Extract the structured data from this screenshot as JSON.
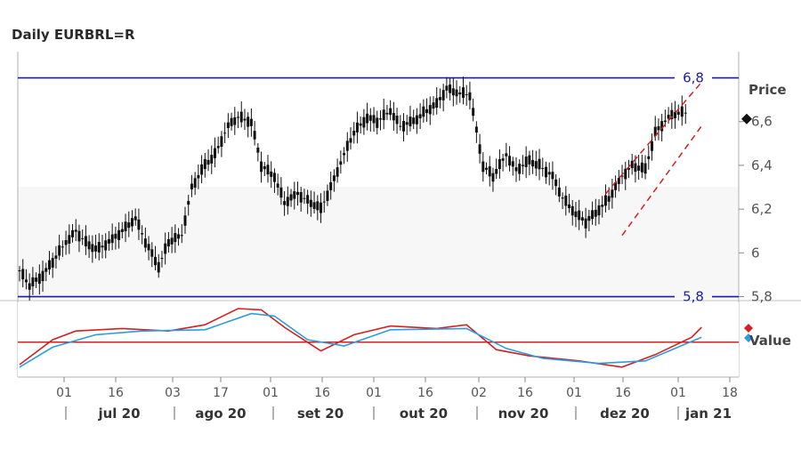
{
  "title": "Daily EURBRL=R",
  "chart_data": [
    {
      "type": "candlestick",
      "panel": "price",
      "yaxis_title": "Price",
      "ylim": [
        5.79,
        6.92
      ],
      "yticks": [
        5.8,
        6,
        6.2,
        6.4,
        6.6
      ],
      "ytick_labels": [
        "5,8",
        "6",
        "6,2",
        "6,4",
        "6,6"
      ],
      "last_value_marker": 6.6,
      "grid": false,
      "x_tick_labels": [
        "01",
        "16",
        "03",
        "17",
        "01",
        "16",
        "01",
        "16",
        "02",
        "16",
        "01",
        "16",
        "01",
        "18"
      ],
      "x_month_labels": [
        "jul 20",
        "ago 20",
        "set 20",
        "out 20",
        "nov 20",
        "dez 20",
        "jan 21"
      ],
      "horizontal_lines": [
        {
          "value": 6.8,
          "label": "6,8",
          "color": "#1c1caa"
        },
        {
          "value": 5.8,
          "label": "5,8",
          "color": "#1c1caa"
        }
      ],
      "trend_channel": {
        "color": "#d42020",
        "style": "dashed",
        "upper": [
          [
            "2020-12-09",
            6.27
          ],
          [
            "2021-01-07",
            6.78
          ]
        ],
        "lower": [
          [
            "2020-12-14",
            6.08
          ],
          [
            "2021-01-07",
            6.58
          ]
        ]
      },
      "series": [
        {
          "points": [
            [
              "2020-06-15",
              5.92
            ],
            [
              "2020-06-18",
              5.85
            ],
            [
              "2020-06-22",
              5.9
            ],
            [
              "2020-06-25",
              5.96
            ],
            [
              "2020-06-29",
              6.05
            ],
            [
              "2020-07-02",
              6.1
            ],
            [
              "2020-07-06",
              6.03
            ],
            [
              "2020-07-09",
              6.02
            ],
            [
              "2020-07-13",
              6.06
            ],
            [
              "2020-07-16",
              6.1
            ],
            [
              "2020-07-20",
              6.16
            ],
            [
              "2020-07-23",
              6.05
            ],
            [
              "2020-07-27",
              5.94
            ],
            [
              "2020-07-30",
              6.05
            ],
            [
              "2020-08-03",
              6.08
            ],
            [
              "2020-08-06",
              6.3
            ],
            [
              "2020-08-10",
              6.4
            ],
            [
              "2020-08-13",
              6.45
            ],
            [
              "2020-08-17",
              6.58
            ],
            [
              "2020-08-20",
              6.62
            ],
            [
              "2020-08-24",
              6.6
            ],
            [
              "2020-08-27",
              6.4
            ],
            [
              "2020-08-31",
              6.35
            ],
            [
              "2020-09-03",
              6.23
            ],
            [
              "2020-09-07",
              6.27
            ],
            [
              "2020-09-10",
              6.24
            ],
            [
              "2020-09-14",
              6.2
            ],
            [
              "2020-09-17",
              6.3
            ],
            [
              "2020-09-21",
              6.45
            ],
            [
              "2020-09-24",
              6.55
            ],
            [
              "2020-09-28",
              6.62
            ],
            [
              "2020-10-01",
              6.6
            ],
            [
              "2020-10-05",
              6.65
            ],
            [
              "2020-10-08",
              6.58
            ],
            [
              "2020-10-12",
              6.6
            ],
            [
              "2020-10-15",
              6.64
            ],
            [
              "2020-10-19",
              6.68
            ],
            [
              "2020-10-22",
              6.75
            ],
            [
              "2020-10-26",
              6.73
            ],
            [
              "2020-10-29",
              6.72
            ],
            [
              "2020-11-02",
              6.4
            ],
            [
              "2020-11-05",
              6.35
            ],
            [
              "2020-11-09",
              6.45
            ],
            [
              "2020-11-12",
              6.38
            ],
            [
              "2020-11-16",
              6.42
            ],
            [
              "2020-11-19",
              6.4
            ],
            [
              "2020-11-23",
              6.35
            ],
            [
              "2020-11-26",
              6.25
            ],
            [
              "2020-11-30",
              6.18
            ],
            [
              "2020-12-03",
              6.14
            ],
            [
              "2020-12-07",
              6.2
            ],
            [
              "2020-12-10",
              6.25
            ],
            [
              "2020-12-14",
              6.35
            ],
            [
              "2020-12-17",
              6.4
            ],
            [
              "2020-12-21",
              6.38
            ],
            [
              "2020-12-24",
              6.55
            ],
            [
              "2020-12-28",
              6.62
            ],
            [
              "2020-12-31",
              6.64
            ]
          ]
        }
      ]
    },
    {
      "type": "line",
      "panel": "indicator",
      "legend_title": "Value",
      "horizontal_line": {
        "value": 0,
        "color": "#d42020"
      },
      "series": [
        {
          "color": "#d42020",
          "points": [
            [
              "2020-06-15",
              -0.9
            ],
            [
              "2020-06-25",
              0.1
            ],
            [
              "2020-07-02",
              0.45
            ],
            [
              "2020-07-16",
              0.55
            ],
            [
              "2020-07-30",
              0.45
            ],
            [
              "2020-08-10",
              0.7
            ],
            [
              "2020-08-20",
              1.35
            ],
            [
              "2020-08-27",
              1.3
            ],
            [
              "2020-09-03",
              0.6
            ],
            [
              "2020-09-14",
              -0.35
            ],
            [
              "2020-09-24",
              0.3
            ],
            [
              "2020-10-05",
              0.65
            ],
            [
              "2020-10-19",
              0.55
            ],
            [
              "2020-10-28",
              0.7
            ],
            [
              "2020-11-06",
              -0.3
            ],
            [
              "2020-11-16",
              -0.55
            ],
            [
              "2020-12-01",
              -0.75
            ],
            [
              "2020-12-14",
              -1.0
            ],
            [
              "2020-12-24",
              -0.5
            ],
            [
              "2021-01-04",
              0.2
            ],
            [
              "2021-01-07",
              0.6
            ]
          ]
        },
        {
          "color": "#2a9de0",
          "points": [
            [
              "2020-06-15",
              -1.0
            ],
            [
              "2020-06-25",
              -0.2
            ],
            [
              "2020-07-08",
              0.3
            ],
            [
              "2020-07-22",
              0.45
            ],
            [
              "2020-08-10",
              0.5
            ],
            [
              "2020-08-24",
              1.15
            ],
            [
              "2020-08-31",
              1.05
            ],
            [
              "2020-09-10",
              0.1
            ],
            [
              "2020-09-21",
              -0.15
            ],
            [
              "2020-10-05",
              0.5
            ],
            [
              "2020-10-28",
              0.55
            ],
            [
              "2020-11-09",
              -0.25
            ],
            [
              "2020-11-20",
              -0.65
            ],
            [
              "2020-12-07",
              -0.85
            ],
            [
              "2020-12-21",
              -0.75
            ],
            [
              "2021-01-07",
              0.2
            ]
          ]
        }
      ]
    }
  ]
}
